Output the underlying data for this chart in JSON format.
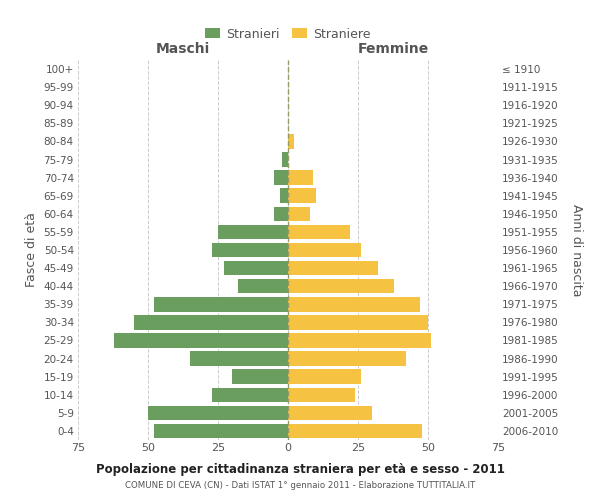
{
  "age_groups_bottom_to_top": [
    "0-4",
    "5-9",
    "10-14",
    "15-19",
    "20-24",
    "25-29",
    "30-34",
    "35-39",
    "40-44",
    "45-49",
    "50-54",
    "55-59",
    "60-64",
    "65-69",
    "70-74",
    "75-79",
    "80-84",
    "85-89",
    "90-94",
    "95-99",
    "100+"
  ],
  "birth_years_bottom_to_top": [
    "2006-2010",
    "2001-2005",
    "1996-2000",
    "1991-1995",
    "1986-1990",
    "1981-1985",
    "1976-1980",
    "1971-1975",
    "1966-1970",
    "1961-1965",
    "1956-1960",
    "1951-1955",
    "1946-1950",
    "1941-1945",
    "1936-1940",
    "1931-1935",
    "1926-1930",
    "1921-1925",
    "1916-1920",
    "1911-1915",
    "≤ 1910"
  ],
  "males_bottom_to_top": [
    48,
    50,
    27,
    20,
    35,
    62,
    55,
    48,
    18,
    23,
    27,
    25,
    5,
    3,
    5,
    2,
    0,
    0,
    0,
    0,
    0
  ],
  "females_bottom_to_top": [
    48,
    30,
    24,
    26,
    42,
    51,
    50,
    47,
    38,
    32,
    26,
    22,
    8,
    10,
    9,
    0,
    2,
    0,
    0,
    0,
    0
  ],
  "male_color": "#6a9e5e",
  "female_color": "#f5c242",
  "title_main": "Popolazione per cittadinanza straniera per età e sesso - 2011",
  "title_sub": "COMUNE DI CEVA (CN) - Dati ISTAT 1° gennaio 2011 - Elaborazione TUTTITALIA.IT",
  "legend_male": "Stranieri",
  "legend_female": "Straniere",
  "xlabel_left": "Maschi",
  "xlabel_right": "Femmine",
  "ylabel_left": "Fasce di età",
  "ylabel_right": "Anni di nascita",
  "xlim": 75,
  "bar_height": 0.8,
  "bg_color": "#ffffff",
  "grid_color": "#cccccc",
  "text_color": "#555555",
  "dashed_line_color": "#999966"
}
